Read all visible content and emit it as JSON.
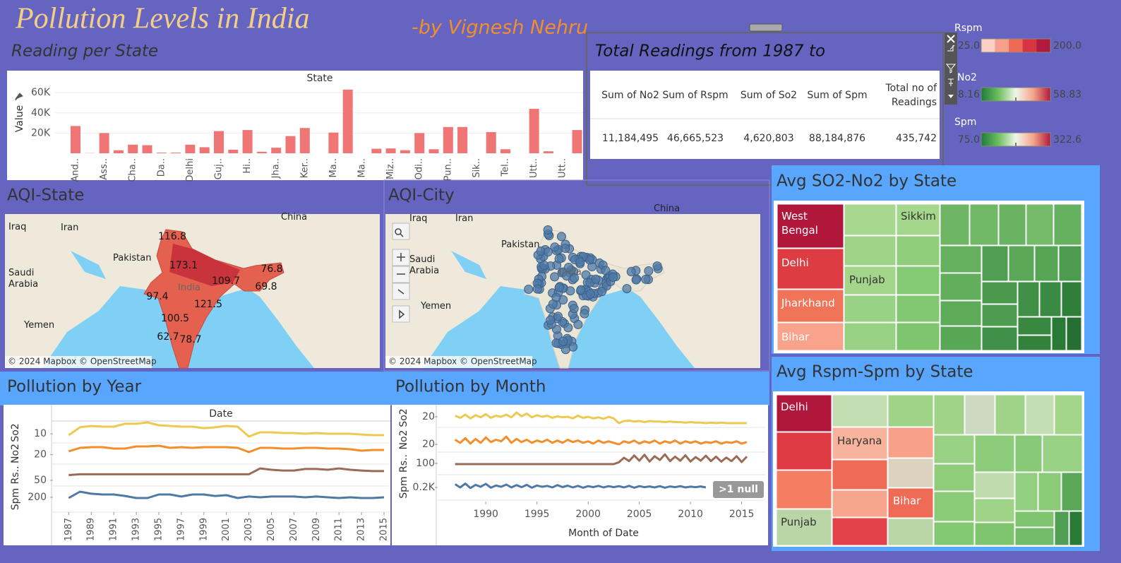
{
  "header": {
    "title": "Pollution Levels in India",
    "author": "-by Vignesh Nehru"
  },
  "chart_data": [
    {
      "type": "bar",
      "title": "Reading per State",
      "x_label": "State",
      "y_label": "Value",
      "color": "#f07575",
      "categories": [
        "And..",
        null,
        "Ass..",
        null,
        "Cha..",
        null,
        "Da..",
        null,
        "Delhi",
        null,
        "Guj..",
        null,
        "Hi..",
        null,
        "Jha..",
        null,
        "Ker..",
        null,
        "Ma..",
        null,
        "Ma..",
        null,
        "Miz..",
        null,
        "Odi..",
        null,
        "Pun..",
        null,
        "Sik..",
        null,
        "Tel..",
        null,
        "Utt..",
        null,
        "Utt..",
        null
      ],
      "values": [
        27000,
        200,
        20000,
        3000,
        8500,
        8000,
        700,
        700,
        8500,
        6000,
        22000,
        3500,
        23000,
        1500,
        5500,
        17000,
        25000,
        0,
        20500,
        63000,
        0,
        4500,
        4800,
        3000,
        20000,
        4000,
        26000,
        26000,
        0,
        21000,
        4000,
        0,
        44000,
        2000,
        0,
        23000
      ],
      "ylim": [
        0,
        65000
      ],
      "yticks": [
        {
          "value": 20000,
          "label": "20K"
        },
        {
          "value": 40000,
          "label": "40K"
        },
        {
          "value": 60000,
          "label": "60K"
        }
      ]
    },
    {
      "type": "line",
      "title": "Pollution by Year",
      "x_label": "Date",
      "x": [
        1987,
        1988,
        1989,
        1990,
        1991,
        1992,
        1993,
        1994,
        1995,
        1996,
        1997,
        1998,
        1999,
        2000,
        2001,
        2002,
        2003,
        2004,
        2005,
        2006,
        2007,
        2008,
        2009,
        2010,
        2011,
        2012,
        2013,
        2014,
        2015
      ],
      "xlim": [
        1985.6,
        2015.5
      ],
      "xticks": [
        1987,
        1989,
        1991,
        1993,
        1995,
        1997,
        1999,
        2001,
        2003,
        2005,
        2007,
        2009,
        2011,
        2013,
        2015
      ],
      "series": [
        {
          "name": "So2",
          "color": "#edc951",
          "ylim": [
            2,
            20
          ],
          "yticks": [
            10
          ],
          "values": [
            8.8,
            15.7,
            16.9,
            16.3,
            16.3,
            18.8,
            18.8,
            20,
            17.5,
            16.9,
            16.3,
            16.3,
            15,
            15.7,
            16.9,
            16.3,
            7.6,
            11.3,
            11.3,
            10.7,
            10.7,
            10.1,
            10.7,
            10.1,
            10.1,
            10.1,
            9.4,
            8.8,
            8.8
          ]
        },
        {
          "name": "No2",
          "color": "#f28e2b",
          "ylim": [
            12,
            30
          ],
          "yticks": [
            20
          ],
          "values": [
            22.8,
            25.8,
            26.4,
            26.4,
            25.2,
            25.2,
            27,
            27,
            27.6,
            25.8,
            26.4,
            25.8,
            26.4,
            26.4,
            26.4,
            25.8,
            22.2,
            25.8,
            25.8,
            25.2,
            25.2,
            25.8,
            25.8,
            25.2,
            25.2,
            24.6,
            23.4,
            24,
            24
          ]
        },
        {
          "name": "Rs..",
          "color": "#9c6b55",
          "ylim": [
            20,
            136
          ],
          "yticks": [
            50
          ],
          "values": [
            78,
            82,
            82,
            82,
            82,
            82,
            82,
            82,
            82,
            82,
            82,
            82,
            82,
            82,
            82,
            82,
            82,
            113,
            106,
            102,
            102,
            110,
            110,
            106,
            113,
            106,
            102,
            99,
            99
          ]
        },
        {
          "name": "Spm",
          "color": "#4e79a7",
          "ylim": [
            100,
            276
          ],
          "yticks": [
            200
          ],
          "values": [
            195,
            238,
            224,
            219,
            219,
            209,
            195,
            195,
            219,
            219,
            205,
            219,
            219,
            209,
            214,
            195,
            205,
            200,
            205,
            205,
            205,
            200,
            205,
            200,
            195,
            200,
            195,
            195,
            200
          ]
        }
      ]
    },
    {
      "type": "line",
      "title": "Pollution by Month",
      "x_label": "Month of Date",
      "null_note": ">1 null",
      "x": [
        1987,
        1987.5,
        1988,
        1988.5,
        1989,
        1989.5,
        1990,
        1990.5,
        1991,
        1991.5,
        1992,
        1992.5,
        1993,
        1993.5,
        1994,
        1994.5,
        1995,
        1995.5,
        1996,
        1996.5,
        1997,
        1997.5,
        1998,
        1998.5,
        1999,
        1999.5,
        2000,
        2000.5,
        2001,
        2001.5,
        2002,
        2002.5,
        2003,
        2003.5,
        2004,
        2004.5,
        2005,
        2005.5,
        2006,
        2006.5,
        2007,
        2007.5,
        2008,
        2008.5,
        2009,
        2009.5,
        2010,
        2010.5,
        2011,
        2011.5,
        2012,
        2012.5,
        2013,
        2013.5,
        2014,
        2014.5,
        2015,
        2015.5
      ],
      "xlim": [
        1985.3,
        2017.3
      ],
      "xticks": [
        1990,
        1995,
        2000,
        2005,
        2010,
        2015
      ],
      "series": [
        {
          "name": "So2",
          "color": "#edc951",
          "ylim": [
            0,
            36
          ],
          "yticks": [
            20
          ],
          "values": [
            22,
            18,
            24,
            17,
            23,
            19,
            25,
            18,
            22,
            20,
            24,
            19,
            28,
            21,
            26,
            19,
            23,
            20,
            22,
            18,
            21,
            19,
            20,
            17,
            22,
            18,
            20,
            17,
            19,
            16,
            20,
            17,
            8,
            12,
            13,
            11,
            12,
            10,
            12,
            11,
            11,
            10,
            11,
            10,
            10,
            9,
            10,
            9,
            9,
            8,
            9,
            8,
            9,
            8,
            8,
            8,
            8,
            8
          ]
        },
        {
          "name": "No2",
          "color": "#f28e2b",
          "ylim": [
            10,
            42
          ],
          "yticks": [
            20
          ],
          "values": [
            26,
            22,
            28,
            21,
            27,
            22,
            29,
            23,
            26,
            24,
            30,
            22,
            27,
            23,
            26,
            22,
            25,
            23,
            26,
            22,
            25,
            22,
            26,
            23,
            25,
            22,
            24,
            21,
            25,
            22,
            24,
            22,
            20,
            24,
            22,
            25,
            21,
            24,
            22,
            25,
            21,
            24,
            22,
            25,
            21,
            24,
            22,
            24,
            21,
            23,
            22,
            24,
            21,
            23,
            22,
            24,
            21,
            23
          ]
        },
        {
          "name": "Rs..",
          "color": "#9c6b55",
          "ylim": [
            50,
            150
          ],
          "yticks": [
            100
          ],
          "values": [
            97,
            97,
            97,
            97,
            97,
            97,
            97,
            97,
            97,
            97,
            97,
            97,
            97,
            97,
            97,
            97,
            97,
            97,
            97,
            97,
            97,
            97,
            97,
            97,
            97,
            97,
            97,
            97,
            97,
            97,
            97,
            97,
            105,
            125,
            110,
            135,
            112,
            138,
            108,
            132,
            115,
            140,
            110,
            130,
            112,
            136,
            108,
            128,
            112,
            134,
            110,
            130,
            108,
            126,
            110,
            132,
            106,
            130
          ]
        },
        {
          "name": "Spm",
          "color": "#4e79a7",
          "ylim": [
            100,
            300
          ],
          "yticks": [
            {
              "value": 200,
              "label": "0.2K"
            }
          ],
          "values": [
            225,
            200,
            230,
            195,
            220,
            205,
            228,
            198,
            215,
            205,
            222,
            200,
            218,
            202,
            220,
            198,
            215,
            205,
            212,
            200,
            218,
            203,
            214,
            200,
            212,
            198,
            210,
            202,
            212,
            200,
            210,
            202,
            210,
            200,
            212,
            198,
            210,
            202,
            208,
            200,
            210,
            198,
            208,
            202,
            210,
            200,
            206,
            202,
            208,
            200,
            null,
            null,
            null,
            null,
            null,
            null,
            null,
            null
          ]
        }
      ]
    }
  ],
  "table": {
    "title": "Total Readings  from 1987 to",
    "headers": [
      "Sum of No2",
      "Sum of Rspm",
      "Sum of So2",
      "Sum of Spm",
      "Total no of Readings"
    ],
    "rows": [
      [
        "11,184,495",
        "46,665,523",
        "4,620,803",
        "88,184,876",
        "435,742"
      ]
    ]
  },
  "legends": [
    {
      "name": "Rspm",
      "min": "25.0",
      "max": "200.0",
      "stepped": true,
      "colors": [
        "#fcd0c4",
        "#f6a08c",
        "#ee6a55",
        "#d83542",
        "#b01a3b"
      ]
    },
    {
      "name": "No2",
      "min": "8.16",
      "max": "58.83",
      "stepped": false,
      "colors": [
        "#1e7b3a",
        "#6fbf5e",
        "#eef6e8",
        "#f6a58c",
        "#b01a3b"
      ]
    },
    {
      "name": "Spm",
      "min": "75.0",
      "max": "322.6",
      "stepped": false,
      "colors": [
        "#1e7b3a",
        "#6fbf5e",
        "#eef6e8",
        "#f6a58c",
        "#b01a3b"
      ]
    }
  ],
  "maps": [
    {
      "title": "AQI-State",
      "places": [
        "Iraq",
        "Iran",
        "China",
        "Pakistan",
        "Saudi Arabia",
        "India",
        "Yemen"
      ],
      "aqi_values": [
        116.8,
        173.1,
        109.7,
        76.8,
        69.8,
        97.4,
        121.5,
        100.5,
        62.7,
        78.7
      ],
      "attribution": "© 2024 Mapbox © OpenStreetMap"
    },
    {
      "title": "AQI-City",
      "places": [
        "Iraq",
        "Iran",
        "China",
        "Pakistan",
        "Saudi Arabia",
        "India",
        "Yemen"
      ],
      "attribution": "© 2024 Mapbox © OpenStreetMap"
    }
  ],
  "treemaps": [
    {
      "title": "Avg SO2-No2 by State",
      "labels": [
        "West Bengal",
        "Delhi",
        "Jharkhand",
        "Bihar",
        "Punjab",
        "Sikkim"
      ]
    },
    {
      "title": "Avg Rspm-Spm by State",
      "labels": [
        "Delhi",
        "Haryana",
        "Punjab",
        "Bihar"
      ]
    }
  ]
}
